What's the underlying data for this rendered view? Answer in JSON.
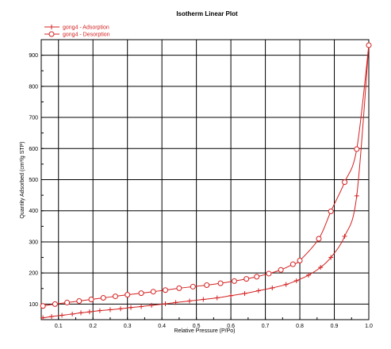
{
  "chart_data": {
    "type": "line",
    "title": "Isotherm Linear Plot",
    "xlabel": "Relative Pressure (P/Po)",
    "ylabel": "Quantity Adsorbed (cm³/g STP)",
    "xlim": [
      0.05,
      1.0
    ],
    "ylim": [
      50,
      950
    ],
    "x_ticks": [
      0.1,
      0.2,
      0.3,
      0.4,
      0.5,
      0.6,
      0.7,
      0.8,
      0.9,
      1.0
    ],
    "x_tick_labels": [
      "0.1",
      "0.2",
      "0.3",
      "0.4",
      "0.5",
      "0.6",
      "0.7",
      "0.8",
      "0.9",
      "1.0"
    ],
    "y_ticks": [
      100,
      200,
      300,
      400,
      500,
      600,
      700,
      800,
      900
    ],
    "y_tick_labels": [
      "100",
      "200",
      "300",
      "400",
      "500",
      "600",
      "700",
      "800",
      "900"
    ],
    "grid": true,
    "legend_position": "top-left",
    "series_color": "#d42020",
    "series": [
      {
        "name": "gong4 - Adsorption",
        "marker": "plus",
        "points": [
          [
            0.055,
            56
          ],
          [
            0.08,
            60
          ],
          [
            0.11,
            64
          ],
          [
            0.14,
            68
          ],
          [
            0.165,
            72
          ],
          [
            0.19,
            75
          ],
          [
            0.22,
            79
          ],
          [
            0.25,
            82
          ],
          [
            0.28,
            85
          ],
          [
            0.31,
            89
          ],
          [
            0.34,
            92
          ],
          [
            0.37,
            96
          ],
          [
            0.41,
            101
          ],
          [
            0.44,
            105
          ],
          [
            0.48,
            110
          ],
          [
            0.52,
            115
          ],
          [
            0.56,
            120
          ],
          [
            0.6,
            127
          ],
          [
            0.64,
            134
          ],
          [
            0.68,
            143
          ],
          [
            0.72,
            152
          ],
          [
            0.76,
            163
          ],
          [
            0.79,
            175
          ],
          [
            0.825,
            193
          ],
          [
            0.86,
            218
          ],
          [
            0.89,
            250
          ],
          [
            0.93,
            318
          ],
          [
            0.965,
            448
          ],
          [
            1.0,
            932
          ]
        ]
      },
      {
        "name": "gong4 - Desorption",
        "marker": "circle",
        "points": [
          [
            1.0,
            932
          ],
          [
            0.965,
            598
          ],
          [
            0.93,
            492
          ],
          [
            0.89,
            398
          ],
          [
            0.855,
            310
          ],
          [
            0.8,
            240
          ],
          [
            0.78,
            228
          ],
          [
            0.745,
            210
          ],
          [
            0.71,
            198
          ],
          [
            0.675,
            188
          ],
          [
            0.645,
            181
          ],
          [
            0.61,
            174
          ],
          [
            0.57,
            167
          ],
          [
            0.53,
            161
          ],
          [
            0.49,
            156
          ],
          [
            0.45,
            151
          ],
          [
            0.41,
            145
          ],
          [
            0.375,
            140
          ],
          [
            0.34,
            135
          ],
          [
            0.3,
            130
          ],
          [
            0.265,
            125
          ],
          [
            0.23,
            120
          ],
          [
            0.195,
            115
          ],
          [
            0.16,
            110
          ],
          [
            0.125,
            105
          ],
          [
            0.09,
            100
          ],
          [
            0.055,
            94
          ]
        ]
      }
    ]
  }
}
